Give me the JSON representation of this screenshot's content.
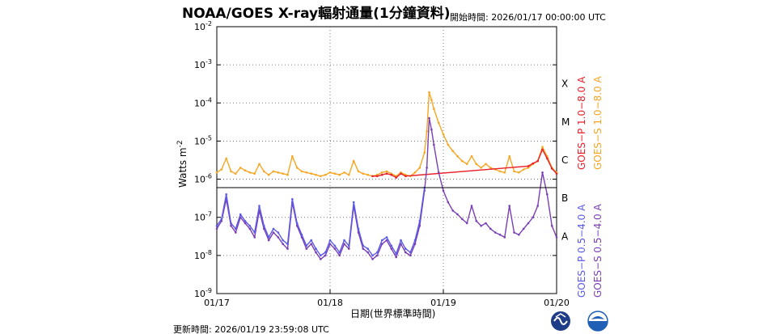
{
  "header": {
    "title": "NOAA/GOES X-ray輻射通量(1分鐘資料)",
    "start_time": "開始時間:  2026/01/17 00:00:00 UTC"
  },
  "footer": {
    "updated": "更新時間: 2026/01/19 23:59:08 UTC"
  },
  "chart_data": {
    "type": "line",
    "title": "NOAA/GOES X-ray輻射通量(1分鐘資料)",
    "xlabel": "日期(世界標準時間)",
    "ylabel": "Watts m",
    "ylabel_sup": "-2",
    "yscale": "log",
    "ylim": [
      1e-09,
      0.01
    ],
    "xlim": [
      0,
      72
    ],
    "x_unit": "hours since 2026/01/17 00:00 UTC",
    "x_ticks": [
      {
        "x": 0,
        "label": "01/17"
      },
      {
        "x": 24,
        "label": "01/18"
      },
      {
        "x": 48,
        "label": "01/19"
      },
      {
        "x": 72,
        "label": "01/20"
      }
    ],
    "y_ticks": [
      {
        "exp": -9,
        "base": "10",
        "sup": "-9"
      },
      {
        "exp": -8,
        "base": "10",
        "sup": "-8"
      },
      {
        "exp": -7,
        "base": "10",
        "sup": "-7"
      },
      {
        "exp": -6,
        "base": "10",
        "sup": "-6"
      },
      {
        "exp": -5,
        "base": "10",
        "sup": "-5"
      },
      {
        "exp": -4,
        "base": "10",
        "sup": "-4"
      },
      {
        "exp": -3,
        "base": "10",
        "sup": "-3"
      },
      {
        "exp": -2,
        "base": "10",
        "sup": "-2"
      }
    ],
    "flare_classes": [
      {
        "label": "X",
        "exp": -4
      },
      {
        "label": "M",
        "exp": -5
      },
      {
        "label": "C",
        "exp": -6
      },
      {
        "label": "B",
        "exp": -7
      },
      {
        "label": "A",
        "exp": -8
      }
    ],
    "threshold_line": {
      "value": 6e-07
    },
    "grid": true,
    "legend_placement": "right",
    "legend": [
      {
        "label": "GOES−P 1.0−8.0 A",
        "color": "#e8202a"
      },
      {
        "label": "GOES−S 1.0−8.0 A",
        "color": "#f5a623"
      },
      {
        "label": "GOES−P 0.5−4.0 A",
        "color": "#5b5be8"
      },
      {
        "label": "GOES−S 0.5−4.0 A",
        "color": "#7a3fb5"
      }
    ],
    "series": [
      {
        "name": "GOES−S 1.0−8.0 A",
        "color": "#f5a623",
        "x": [
          0,
          1,
          2,
          3,
          4,
          5,
          6,
          7,
          8,
          9,
          10,
          11,
          12,
          13,
          14,
          15,
          16,
          17,
          18,
          19,
          20,
          21,
          22,
          23,
          24,
          25,
          26,
          27,
          28,
          29,
          30,
          31,
          32,
          33,
          34,
          35,
          36,
          37,
          38,
          39,
          40,
          41,
          42,
          43,
          44,
          44.5,
          45,
          45.5,
          46,
          47,
          48,
          49,
          50,
          51,
          52,
          53,
          54,
          55,
          56,
          57,
          58,
          59,
          60,
          61,
          62,
          63,
          64,
          65,
          66,
          67,
          68,
          69,
          70,
          71,
          72
        ],
        "values": [
          1.5e-06,
          1.8e-06,
          3.5e-06,
          1.6e-06,
          1.4e-06,
          2e-06,
          1.7e-06,
          1.5e-06,
          1.4e-06,
          2.5e-06,
          1.6e-06,
          1.3e-06,
          1.6e-06,
          1.5e-06,
          1.4e-06,
          1.3e-06,
          4e-06,
          2e-06,
          1.6e-06,
          1.5e-06,
          1.4e-06,
          1.3e-06,
          1.2e-06,
          1.3e-06,
          1.5e-06,
          1.4e-06,
          1.3e-06,
          1.5e-06,
          1.3e-06,
          3e-06,
          1.6e-06,
          1.4e-06,
          1.3e-06,
          1.2e-06,
          1.3e-06,
          1.5e-06,
          1.6e-06,
          1.4e-06,
          1.2e-06,
          1.5e-06,
          1.3e-06,
          1.2e-06,
          1.5e-06,
          2e-06,
          5e-06,
          1.8e-05,
          0.00019,
          0.00012,
          7e-05,
          3e-05,
          1.5e-05,
          8e-06,
          5.5e-06,
          4e-06,
          3e-06,
          2.5e-06,
          4e-06,
          2.5e-06,
          2e-06,
          2.5e-06,
          2e-06,
          1.8e-06,
          1.6e-06,
          1.5e-06,
          4e-06,
          1.6e-06,
          1.5e-06,
          1.8e-06,
          2e-06,
          2.5e-06,
          3e-06,
          7e-06,
          4e-06,
          2e-06,
          1.5e-06
        ]
      },
      {
        "name": "GOES−P 1.0−8.0 A",
        "color": "#e8202a",
        "x": [
          33,
          34,
          35,
          36,
          37,
          38,
          39,
          40,
          66,
          67,
          68,
          69,
          70,
          71,
          72
        ],
        "values": [
          1.2e-06,
          1.2e-06,
          1.3e-06,
          1.4e-06,
          1.3e-06,
          1.1e-06,
          1.4e-06,
          1.2e-06,
          2.2e-06,
          2.6e-06,
          3e-06,
          6e-06,
          3.5e-06,
          1.9e-06,
          1.4e-06
        ]
      },
      {
        "name": "GOES−S 0.5−4.0 A",
        "color": "#7a3fb5",
        "x": [
          0,
          1,
          2,
          3,
          4,
          5,
          6,
          7,
          8,
          9,
          10,
          11,
          12,
          13,
          14,
          15,
          16,
          17,
          18,
          19,
          20,
          21,
          22,
          23,
          24,
          25,
          26,
          27,
          28,
          29,
          30,
          31,
          32,
          33,
          34,
          35,
          36,
          37,
          38,
          39,
          40,
          41,
          42,
          43,
          44,
          44.5,
          45,
          45.5,
          46,
          47,
          48,
          49,
          50,
          51,
          52,
          53,
          54,
          55,
          56,
          57,
          58,
          59,
          60,
          61,
          62,
          63,
          64,
          65,
          66,
          67,
          68,
          69,
          70,
          71,
          72
        ],
        "values": [
          5e-08,
          8e-08,
          3e-07,
          6e-08,
          4e-08,
          1e-07,
          7e-08,
          5e-08,
          3e-08,
          1.5e-07,
          5e-08,
          2.5e-08,
          4e-08,
          3e-08,
          2e-08,
          1.5e-08,
          2.5e-07,
          6e-08,
          3e-08,
          1.5e-08,
          2e-08,
          1.2e-08,
          8e-09,
          1e-08,
          2e-08,
          1.5e-08,
          1e-08,
          2e-08,
          1.5e-08,
          2e-07,
          4e-08,
          1.5e-08,
          1.2e-08,
          8e-09,
          1e-08,
          2e-08,
          2.5e-08,
          1.5e-08,
          9e-09,
          2e-08,
          1.2e-08,
          1e-08,
          2e-08,
          6e-08,
          5e-07,
          2e-06,
          4e-05,
          2e-05,
          8e-06,
          1.5e-06,
          5e-07,
          2.5e-07,
          1.5e-07,
          1.2e-07,
          9e-08,
          7e-08,
          2e-07,
          8e-08,
          6e-08,
          7e-08,
          5e-08,
          4e-08,
          3.5e-08,
          3e-08,
          2e-07,
          4e-08,
          3.5e-08,
          5e-08,
          7e-08,
          1e-07,
          2e-07,
          1.5e-06,
          4e-07,
          6e-08,
          3e-08
        ]
      },
      {
        "name": "GOES−P 0.5−4.0 A",
        "color": "#5b5be8",
        "x": [
          0,
          1,
          2,
          3,
          4,
          5,
          6,
          7,
          8,
          9,
          10,
          11,
          12,
          13,
          14,
          15,
          16,
          17,
          18,
          19,
          20,
          21,
          22,
          23,
          24,
          25,
          26,
          27,
          28,
          29,
          30,
          31,
          32,
          33,
          34,
          35,
          36,
          37,
          38,
          39,
          40,
          41,
          42,
          43,
          44
        ],
        "values": [
          6e-08,
          9e-08,
          4e-07,
          7e-08,
          5e-08,
          1.2e-07,
          8e-08,
          6e-08,
          4e-08,
          2e-07,
          6e-08,
          3e-08,
          5e-08,
          4e-08,
          2.5e-08,
          2e-08,
          3e-07,
          7e-08,
          3.5e-08,
          1.8e-08,
          2.5e-08,
          1.5e-08,
          1e-08,
          1.2e-08,
          2.5e-08,
          1.8e-08,
          1.2e-08,
          2.5e-08,
          1.8e-08,
          2.5e-07,
          5e-08,
          1.8e-08,
          1.5e-08,
          1e-08,
          1.2e-08,
          2.5e-08,
          3e-08,
          1.8e-08,
          1.1e-08,
          2.5e-08,
          1.5e-08,
          1.2e-08,
          2.5e-08,
          8e-08,
          6e-07
        ]
      }
    ]
  },
  "logos": [
    {
      "name": "cwa-logo",
      "color": "#1f3c88"
    },
    {
      "name": "noaa-logo",
      "color": "#1f5fb5"
    }
  ]
}
